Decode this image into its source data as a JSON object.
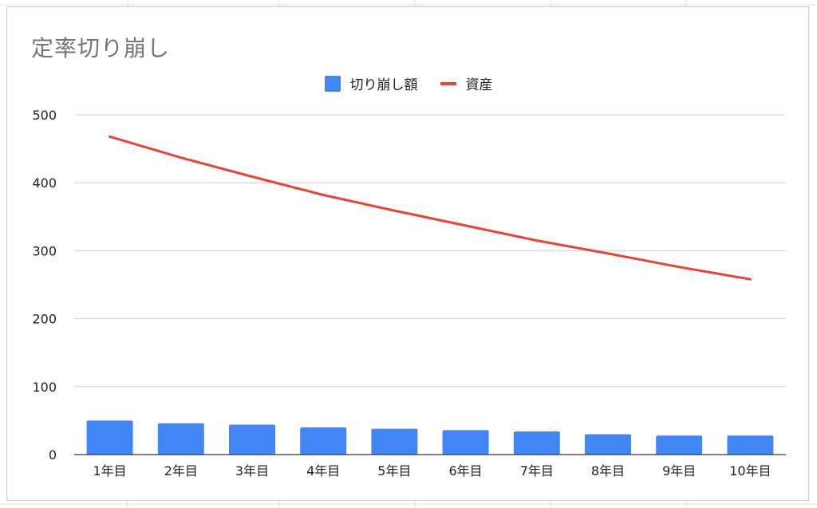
{
  "chart_data": {
    "type": "bar",
    "title": "定率切り崩し",
    "categories": [
      "1年目",
      "2年目",
      "3年目",
      "4年目",
      "5年目",
      "6年目",
      "7年目",
      "8年目",
      "9年目",
      "10年目"
    ],
    "series": [
      {
        "name": "切り崩し額",
        "kind": "bar",
        "color": "#4285f4",
        "values": [
          50,
          46,
          44,
          40,
          38,
          36,
          34,
          30,
          28,
          28
        ]
      },
      {
        "name": "資産",
        "kind": "line",
        "color": "#ea4335",
        "values": [
          468,
          437,
          409,
          382,
          359,
          337,
          315,
          296,
          276,
          258
        ]
      }
    ],
    "yticks": [
      0,
      100,
      200,
      300,
      400,
      500
    ],
    "ylim": [
      0,
      500
    ],
    "xlabel": "",
    "ylabel": "",
    "grid": true,
    "legend_position": "top"
  }
}
